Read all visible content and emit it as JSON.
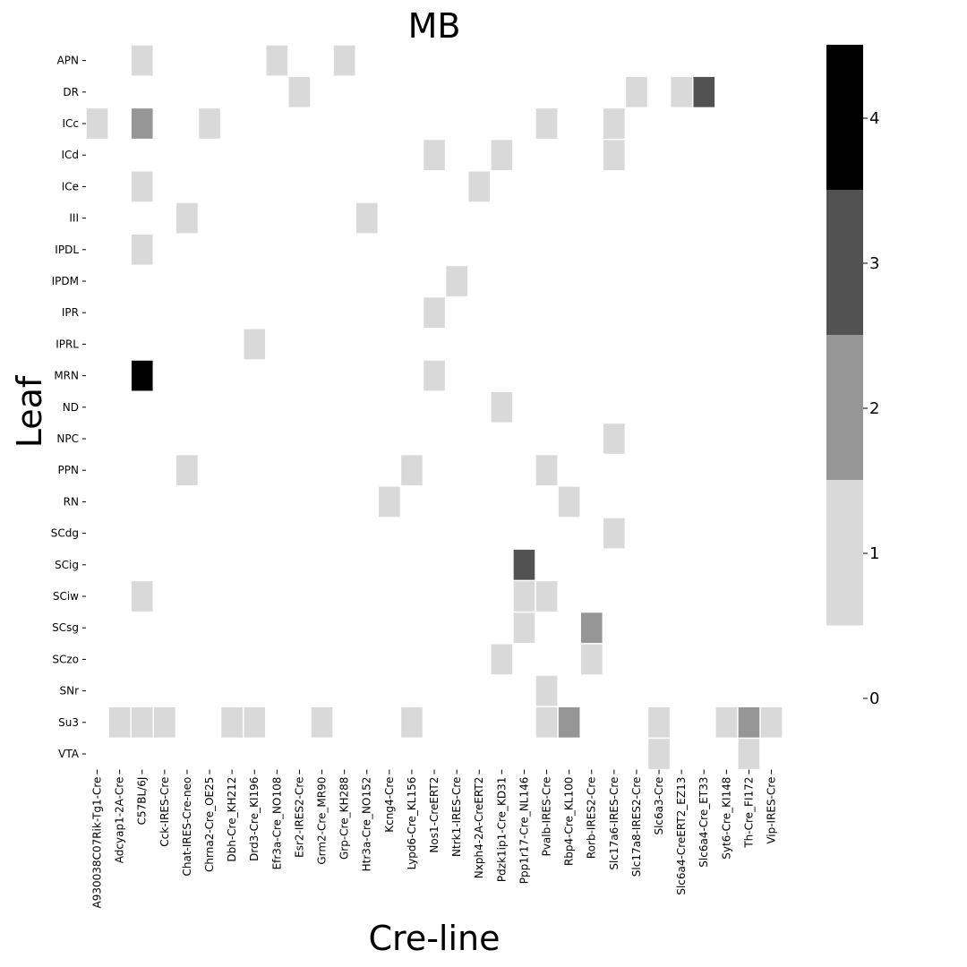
{
  "chart_data": {
    "type": "heatmap",
    "title": "MB",
    "xlabel": "Cre-line",
    "ylabel": "Leaf",
    "x_categories": [
      "A930038C07Rik-Tg1-Cre",
      "Adcyap1-2A-Cre",
      "C57BL/6J",
      "Cck-IRES-Cre",
      "Chat-IRES-Cre-neo",
      "Chrna2-Cre_OE25",
      "Dbh-Cre_KH212",
      "Drd3-Cre_KI196",
      "Efr3a-Cre_NO108",
      "Esr2-IRES2-Cre",
      "Grm2-Cre_MR90",
      "Grp-Cre_KH288",
      "Htr3a-Cre_NO152",
      "Kcng4-Cre",
      "Lypd6-Cre_KL156",
      "Nos1-CreERT2",
      "Ntrk1-IRES-Cre",
      "Nxph4-2A-CreERT2",
      "Pdzk1ip1-Cre_KD31",
      "Ppp1r17-Cre_NL146",
      "Pvalb-IRES-Cre",
      "Rbp4-Cre_KL100",
      "Rorb-IRES2-Cre",
      "Slc17a6-IRES-Cre",
      "Slc17a8-IRES2-Cre",
      "Slc6a3-Cre",
      "Slc6a4-CreERT2_EZ13",
      "Slc6a4-Cre_ET33",
      "Syt6-Cre_KI148",
      "Th-Cre_FI172",
      "Vip-IRES-Cre"
    ],
    "y_categories": [
      "APN",
      "DR",
      "ICc",
      "ICd",
      "ICe",
      "III",
      "IPDL",
      "IPDM",
      "IPR",
      "IPRL",
      "MRN",
      "ND",
      "NPC",
      "PPN",
      "RN",
      "SCdg",
      "SCig",
      "SCiw",
      "SCsg",
      "SCzo",
      "SNr",
      "Su3",
      "VTA"
    ],
    "cells": [
      [
        "APN",
        "C57BL/6J",
        1
      ],
      [
        "APN",
        "Efr3a-Cre_NO108",
        1
      ],
      [
        "APN",
        "Grp-Cre_KH288",
        1
      ],
      [
        "DR",
        "Esr2-IRES2-Cre",
        1
      ],
      [
        "DR",
        "Slc17a8-IRES2-Cre",
        1
      ],
      [
        "DR",
        "Slc6a4-CreERT2_EZ13",
        1
      ],
      [
        "DR",
        "Slc6a4-Cre_ET33",
        3
      ],
      [
        "ICc",
        "A930038C07Rik-Tg1-Cre",
        1
      ],
      [
        "ICc",
        "C57BL/6J",
        2
      ],
      [
        "ICc",
        "Chrna2-Cre_OE25",
        1
      ],
      [
        "ICc",
        "Pvalb-IRES-Cre",
        1
      ],
      [
        "ICc",
        "Slc17a6-IRES-Cre",
        1
      ],
      [
        "ICd",
        "Nos1-CreERT2",
        1
      ],
      [
        "ICd",
        "Pdzk1ip1-Cre_KD31",
        1
      ],
      [
        "ICd",
        "Slc17a6-IRES-Cre",
        1
      ],
      [
        "ICe",
        "C57BL/6J",
        1
      ],
      [
        "ICe",
        "Nxph4-2A-CreERT2",
        1
      ],
      [
        "III",
        "Chat-IRES-Cre-neo",
        1
      ],
      [
        "III",
        "Htr3a-Cre_NO152",
        1
      ],
      [
        "IPDL",
        "C57BL/6J",
        1
      ],
      [
        "IPDM",
        "Ntrk1-IRES-Cre",
        1
      ],
      [
        "IPR",
        "Nos1-CreERT2",
        1
      ],
      [
        "IPRL",
        "Drd3-Cre_KI196",
        1
      ],
      [
        "MRN",
        "C57BL/6J",
        4
      ],
      [
        "MRN",
        "Nos1-CreERT2",
        1
      ],
      [
        "ND",
        "Pdzk1ip1-Cre_KD31",
        1
      ],
      [
        "NPC",
        "Slc17a6-IRES-Cre",
        1
      ],
      [
        "PPN",
        "Chat-IRES-Cre-neo",
        1
      ],
      [
        "PPN",
        "Lypd6-Cre_KL156",
        1
      ],
      [
        "PPN",
        "Pvalb-IRES-Cre",
        1
      ],
      [
        "RN",
        "Kcng4-Cre",
        1
      ],
      [
        "RN",
        "Rbp4-Cre_KL100",
        1
      ],
      [
        "SCdg",
        "Slc17a6-IRES-Cre",
        1
      ],
      [
        "SCig",
        "Ppp1r17-Cre_NL146",
        3
      ],
      [
        "SCiw",
        "C57BL/6J",
        1
      ],
      [
        "SCiw",
        "Ppp1r17-Cre_NL146",
        1
      ],
      [
        "SCiw",
        "Pvalb-IRES-Cre",
        1
      ],
      [
        "SCsg",
        "Ppp1r17-Cre_NL146",
        1
      ],
      [
        "SCsg",
        "Rorb-IRES2-Cre",
        2
      ],
      [
        "SCzo",
        "Pdzk1ip1-Cre_KD31",
        1
      ],
      [
        "SCzo",
        "Rorb-IRES2-Cre",
        1
      ],
      [
        "SNr",
        "Pvalb-IRES-Cre",
        1
      ],
      [
        "Su3",
        "Adcyap1-2A-Cre",
        1
      ],
      [
        "Su3",
        "C57BL/6J",
        1
      ],
      [
        "Su3",
        "Cck-IRES-Cre",
        1
      ],
      [
        "Su3",
        "Dbh-Cre_KH212",
        1
      ],
      [
        "Su3",
        "Drd3-Cre_KI196",
        1
      ],
      [
        "Su3",
        "Grm2-Cre_MR90",
        1
      ],
      [
        "Su3",
        "Lypd6-Cre_KL156",
        1
      ],
      [
        "Su3",
        "Pvalb-IRES-Cre",
        1
      ],
      [
        "Su3",
        "Rbp4-Cre_KL100",
        2
      ],
      [
        "Su3",
        "Slc6a3-Cre",
        1
      ],
      [
        "Su3",
        "Syt6-Cre_KI148",
        1
      ],
      [
        "Su3",
        "Th-Cre_FI172",
        2
      ],
      [
        "Su3",
        "Vip-IRES-Cre",
        1
      ],
      [
        "VTA",
        "Slc6a3-Cre",
        1
      ],
      [
        "VTA",
        "Th-Cre_FI172",
        1
      ]
    ],
    "colorbar": {
      "ticks": [
        "0",
        "1",
        "2",
        "3",
        "4"
      ],
      "range": [
        0,
        4
      ],
      "colors": {
        "0": "#ffffff",
        "1": "#d9d9d9",
        "2": "#969696",
        "3": "#525252",
        "4": "#000000"
      }
    }
  }
}
